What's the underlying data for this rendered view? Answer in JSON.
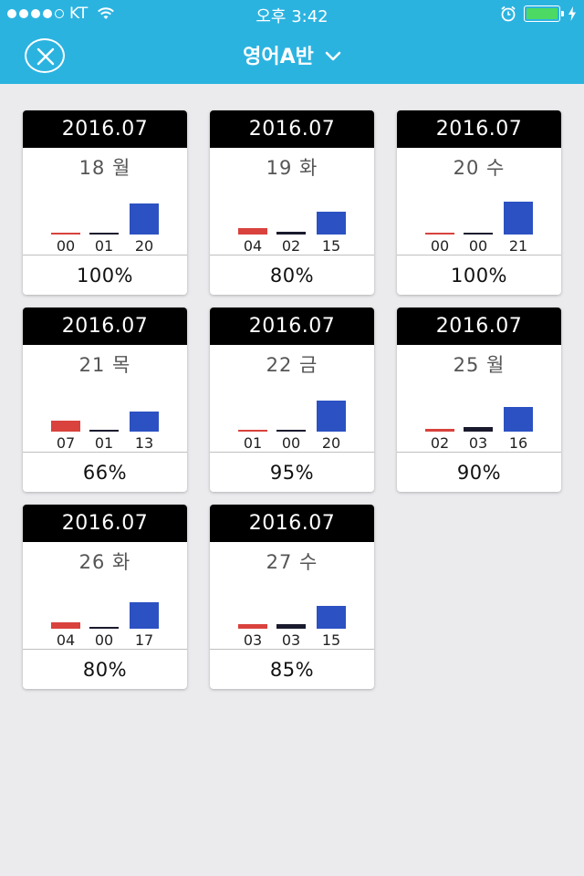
{
  "status_bar": {
    "carrier": "KT",
    "time": "오후 3:42",
    "signal_filled": 4,
    "signal_total": 5,
    "battery_level": 1.0,
    "icons": [
      "signal-icon",
      "wifi-icon",
      "alarm-icon",
      "battery-icon",
      "charging-icon"
    ]
  },
  "nav": {
    "title": "영어A반",
    "close_icon": "close-icon",
    "dropdown_icon": "chevron-down-icon"
  },
  "colors": {
    "header_bg": "#2bb3e0",
    "page_bg": "#ebebee",
    "bar_red": "#d9423d",
    "bar_dark": "#1a1a2e",
    "bar_blue": "#2c51c2",
    "battery_fill": "#4cd964"
  },
  "cards": [
    {
      "month": "2016.07",
      "day": "18 월",
      "counts": [
        "00",
        "01",
        "20"
      ],
      "rate": "100%"
    },
    {
      "month": "2016.07",
      "day": "19 화",
      "counts": [
        "04",
        "02",
        "15"
      ],
      "rate": "80%"
    },
    {
      "month": "2016.07",
      "day": "20 수",
      "counts": [
        "00",
        "00",
        "21"
      ],
      "rate": "100%"
    },
    {
      "month": "2016.07",
      "day": "21 목",
      "counts": [
        "07",
        "01",
        "13"
      ],
      "rate": "66%"
    },
    {
      "month": "2016.07",
      "day": "22 금",
      "counts": [
        "01",
        "00",
        "20"
      ],
      "rate": "95%"
    },
    {
      "month": "2016.07",
      "day": "25 월",
      "counts": [
        "02",
        "03",
        "16"
      ],
      "rate": "90%"
    },
    {
      "month": "2016.07",
      "day": "26 화",
      "counts": [
        "04",
        "00",
        "17"
      ],
      "rate": "80%"
    },
    {
      "month": "2016.07",
      "day": "27 수",
      "counts": [
        "03",
        "03",
        "15"
      ],
      "rate": "85%"
    }
  ]
}
